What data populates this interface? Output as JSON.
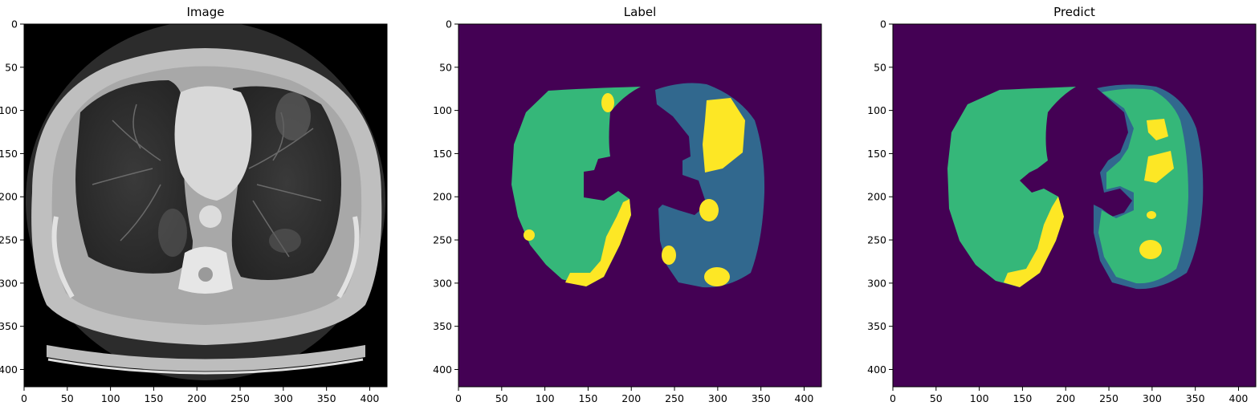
{
  "panels": [
    {
      "id": "image",
      "title": "Image",
      "kind": "ct-slice"
    },
    {
      "id": "label",
      "title": "Label",
      "kind": "segmentation"
    },
    {
      "id": "predict",
      "title": "Predict",
      "kind": "segmentation"
    }
  ],
  "axes": {
    "x_ticks": [
      "0",
      "50",
      "100",
      "150",
      "200",
      "250",
      "300",
      "350",
      "400"
    ],
    "y_ticks": [
      "0",
      "50",
      "100",
      "150",
      "200",
      "250",
      "300",
      "350",
      "400"
    ]
  },
  "colors": {
    "background": "#440154",
    "class_blue": "#31688e",
    "class_green": "#35b779",
    "class_yellow": "#fde725",
    "ct_background": "#000000",
    "ct_body": "#c9c9c9"
  }
}
